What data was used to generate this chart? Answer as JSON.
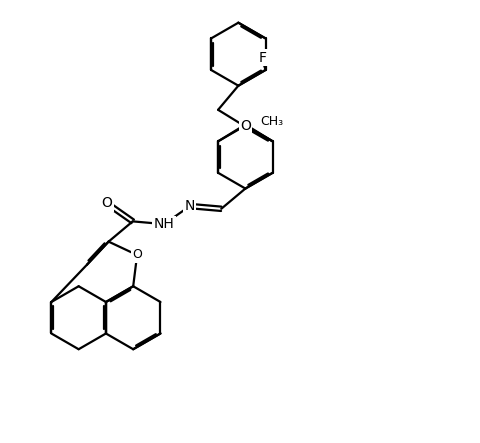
{
  "background_color": "#ffffff",
  "line_color": "#000000",
  "lw": 1.6,
  "fs": 10,
  "xlim": [
    0,
    10
  ],
  "ylim": [
    0,
    10
  ],
  "figw": 4.81,
  "figh": 4.43,
  "dpi": 100
}
